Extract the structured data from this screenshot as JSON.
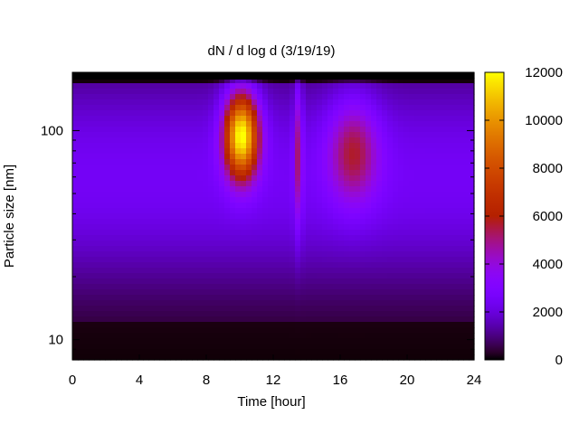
{
  "chart_data": {
    "type": "heatmap",
    "title": "dN / d log d (3/19/19)",
    "xlabel": "Time [hour]",
    "ylabel": "Particle size [nm]",
    "x_ticks": [
      0,
      4,
      8,
      12,
      16,
      20,
      24
    ],
    "xlim": [
      0,
      24
    ],
    "y_scale": "log",
    "y_ticks": [
      10,
      100
    ],
    "ylim": [
      8,
      190
    ],
    "colorbar": {
      "ticks": [
        0,
        2000,
        4000,
        6000,
        8000,
        10000,
        12000
      ],
      "range": [
        0,
        12000
      ],
      "palette": "gnuplot"
    },
    "blobs": [
      {
        "x_center_hour": 10.1,
        "size_center_nm": 95,
        "peak": 11500,
        "x_width_hour": 1.0,
        "log_width": 0.2
      },
      {
        "x_center_hour": 16.8,
        "size_center_nm": 80,
        "peak": 4800,
        "x_width_hour": 1.5,
        "log_width": 0.25
      },
      {
        "x_center_hour": 13.5,
        "size_center_nm": 80,
        "peak": 4200,
        "x_width_hour": 0.25,
        "log_width": 0.35
      }
    ],
    "background_level": 2500
  }
}
